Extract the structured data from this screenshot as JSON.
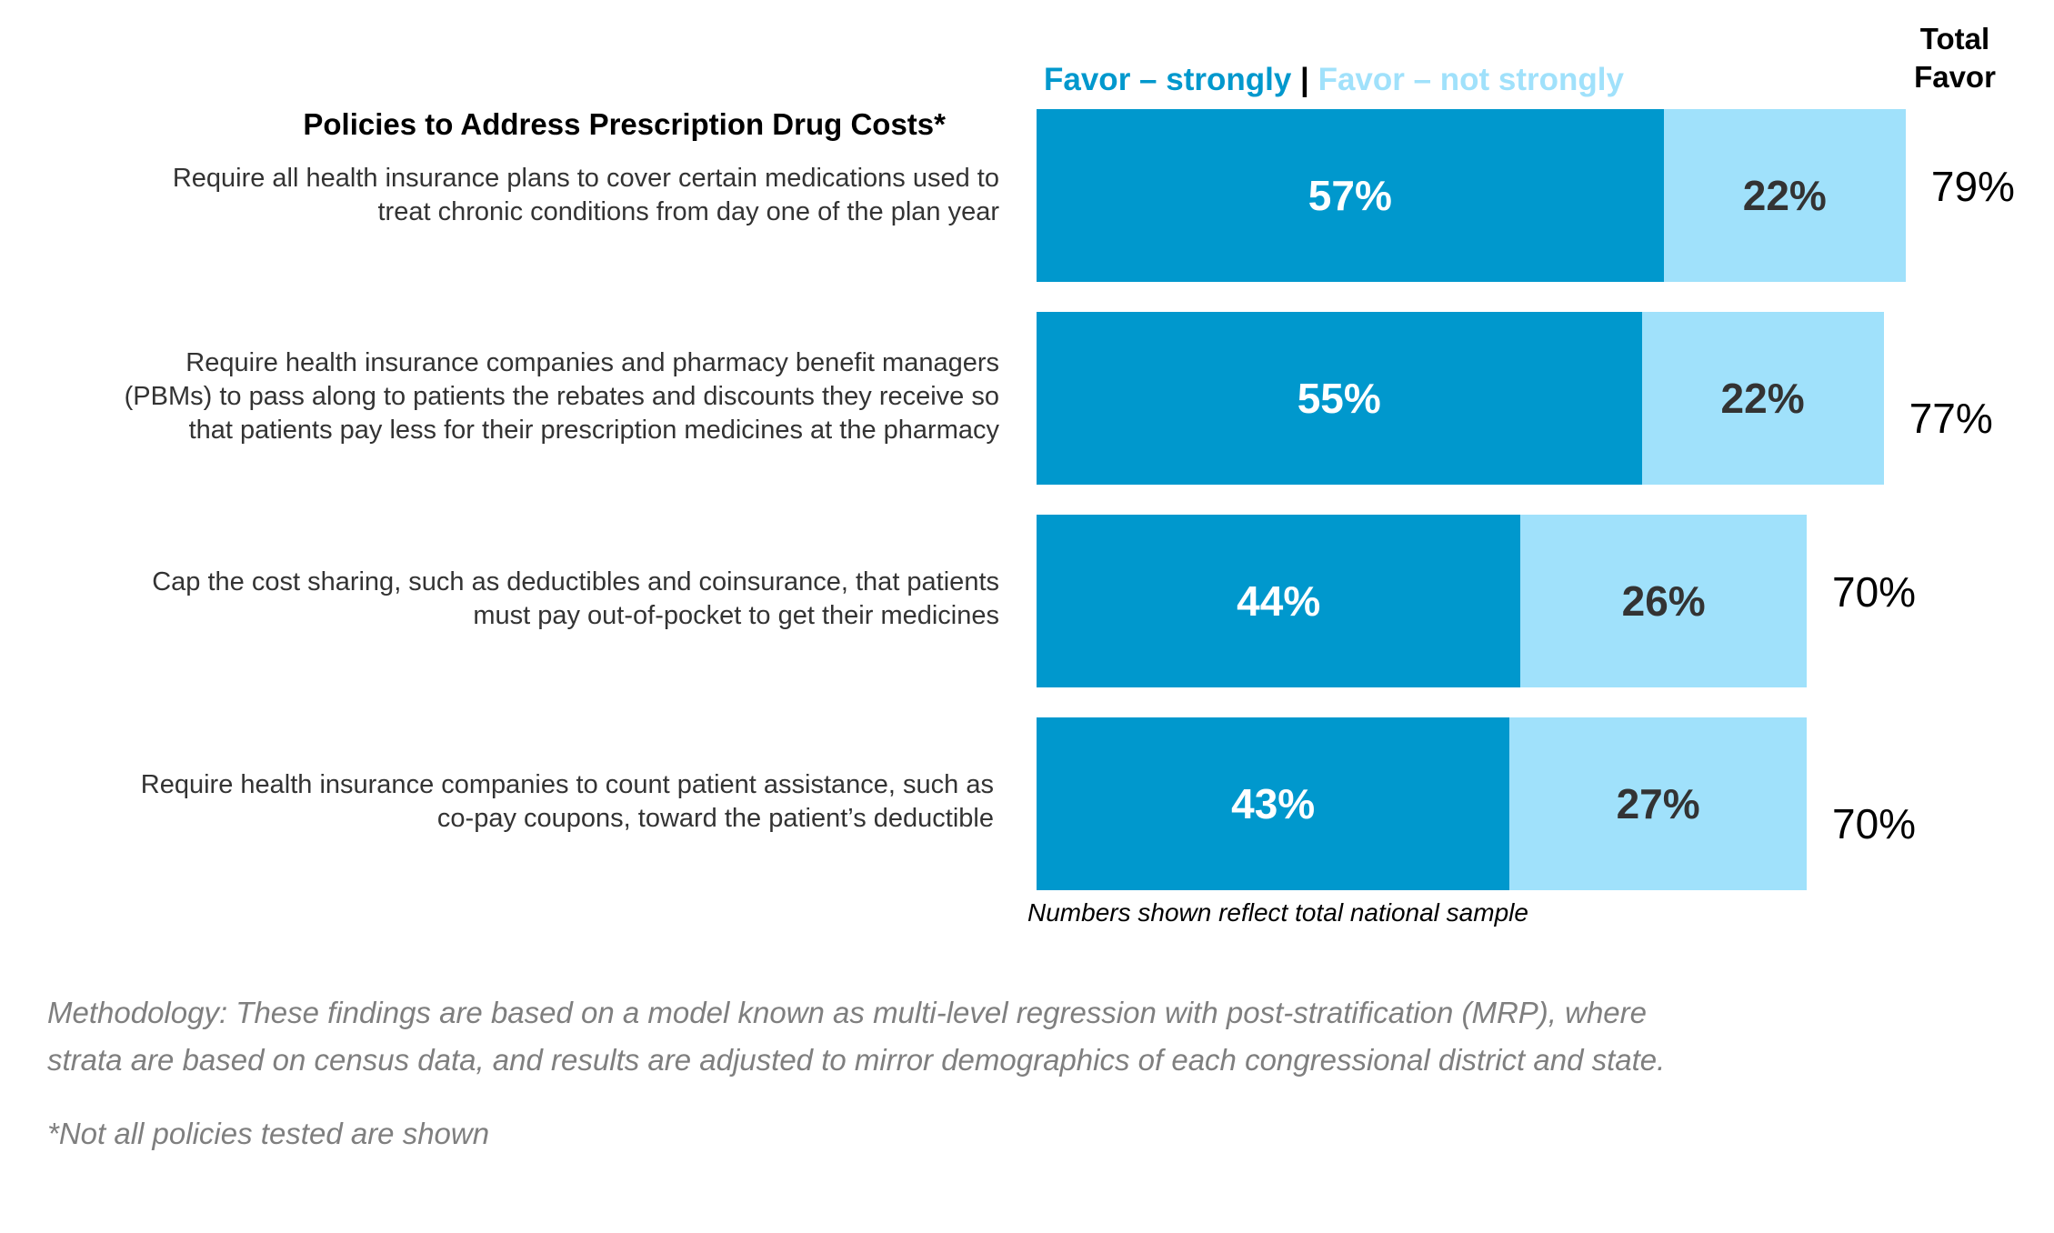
{
  "colors": {
    "strong": "#0098cd",
    "not_strong": "#a0e1fb",
    "strong_text": "#ffffff",
    "not_strong_text": "#333333"
  },
  "legend": {
    "strong_label": "Favor – strongly",
    "separator": "|",
    "not_strong_label": "Favor – not strongly"
  },
  "total_header": {
    "line1": "Total",
    "line2": "Favor"
  },
  "section_title": "Policies to Address Prescription Drug Costs*",
  "chart_data": {
    "type": "bar",
    "orientation": "horizontal",
    "stacked": true,
    "unit": "%",
    "categories": [
      [
        "Require all health insurance plans to cover certain medications used to",
        "treat chronic conditions from day one of the plan year"
      ],
      [
        "Require health insurance companies and pharmacy benefit managers",
        "(PBMs) to pass along to patients the rebates and discounts they receive so",
        "that patients pay less for their prescription medicines at the pharmacy"
      ],
      [
        "Cap the cost sharing, such as deductibles and coinsurance, that patients",
        "must pay out-of-pocket to get their medicines"
      ],
      [
        "Require health insurance companies to count patient assistance, such as",
        "co-pay coupons, toward the patient’s deductible"
      ]
    ],
    "series": [
      {
        "name": "Favor – strongly",
        "values": [
          57,
          55,
          44,
          43
        ]
      },
      {
        "name": "Favor – not strongly",
        "values": [
          22,
          22,
          26,
          27
        ]
      }
    ],
    "totals": [
      79,
      77,
      70,
      70
    ],
    "xlim": [
      0,
      79
    ],
    "legend_position": "top"
  },
  "sample_note": "Numbers shown reflect total national sample",
  "methodology": [
    "Methodology: These findings are based on a model known as multi-level regression with post-stratification (MRP), where",
    "strata are based on census data, and results are adjusted to mirror demographics of each congressional district and state."
  ],
  "footnote": "*Not all policies tested are shown"
}
